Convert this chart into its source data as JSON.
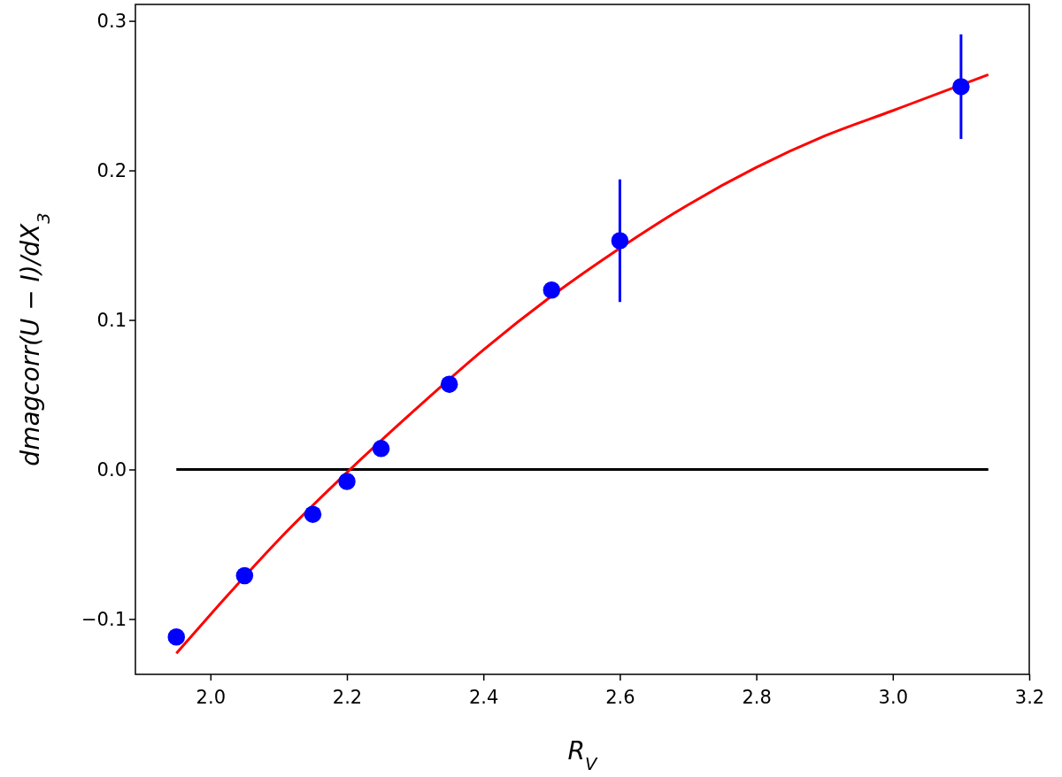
{
  "chart_data": {
    "type": "scatter",
    "xlabel": "R$_{V}$",
    "ylabel": "dmagcorr(U − I)/dX$_{3}$",
    "xlim": [
      1.89,
      3.2
    ],
    "xticks": [
      {
        "value": 2.0,
        "label": "2.0"
      },
      2.2,
      2.4,
      2.6,
      2.8,
      {
        "value": 3.0,
        "label": "3.0"
      },
      3.2
    ],
    "ylim": [
      -0.137,
      0.311
    ],
    "yticks": [
      {
        "value": -0.1,
        "label": "−0.1"
      },
      {
        "value": 0,
        "label": "0.0"
      },
      0.1,
      0.2,
      0.3
    ],
    "grid": false,
    "series": [
      {
        "type": "line",
        "marker": "none",
        "color": "#000000",
        "x": [
          1.95,
          3.14
        ],
        "values": [
          0,
          0
        ]
      },
      {
        "type": "line",
        "marker": "none",
        "color": "#ff0000",
        "x": [
          1.95,
          2.0,
          2.1,
          2.2,
          2.3,
          2.4,
          2.5,
          2.6,
          2.7,
          2.8,
          2.9,
          3.0,
          3.1,
          3.14
        ],
        "values": [
          -0.123,
          -0.097,
          -0.047,
          -0.002,
          0.04,
          0.08,
          0.116,
          0.148,
          0.177,
          0.202,
          0.223,
          0.24,
          null,
          0.264
        ]
      },
      {
        "marker": "circle",
        "color": "#0000ff",
        "x": [
          1.95,
          2.05,
          2.15,
          2.2,
          2.25,
          2.35,
          2.5,
          2.6,
          3.1
        ],
        "values": [
          -0.112,
          -0.071,
          -0.03,
          -0.008,
          0.014,
          0.057,
          0.12,
          0.153,
          0.256
        ],
        "errors": [
          null,
          null,
          null,
          null,
          null,
          null,
          null,
          0.041,
          0.035
        ]
      }
    ]
  }
}
